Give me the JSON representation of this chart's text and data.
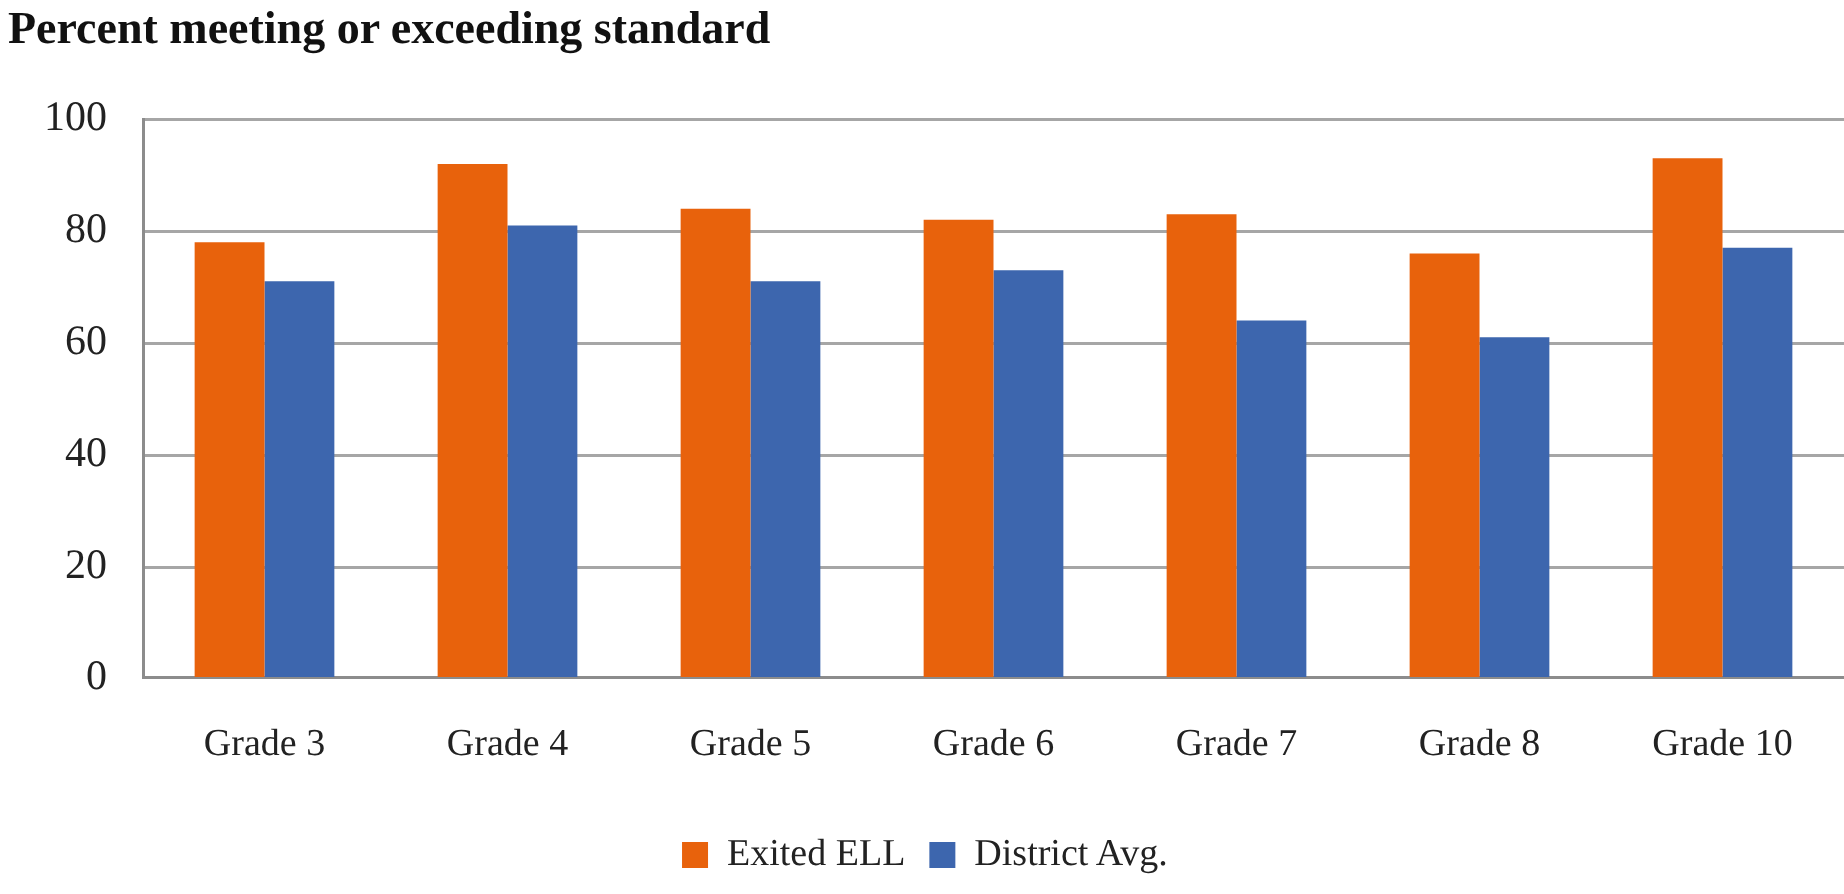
{
  "chart_data": {
    "type": "bar",
    "title": "Percent meeting or exceeding standard",
    "categories": [
      "Grade 3",
      "Grade 4",
      "Grade 5",
      "Grade 6",
      "Grade 7",
      "Grade 8",
      "Grade 10"
    ],
    "series": [
      {
        "name": "Exited ELL",
        "color": "#e8620c",
        "values": [
          78,
          92,
          84,
          82,
          83,
          76,
          93
        ]
      },
      {
        "name": "District Avg.",
        "color": "#3d66ae",
        "values": [
          71,
          81,
          71,
          73,
          64,
          61,
          77
        ]
      }
    ],
    "ylim": [
      0,
      100
    ],
    "yticks": [
      0,
      20,
      40,
      60,
      80,
      100
    ],
    "grid": "y",
    "legend": "bottom"
  }
}
